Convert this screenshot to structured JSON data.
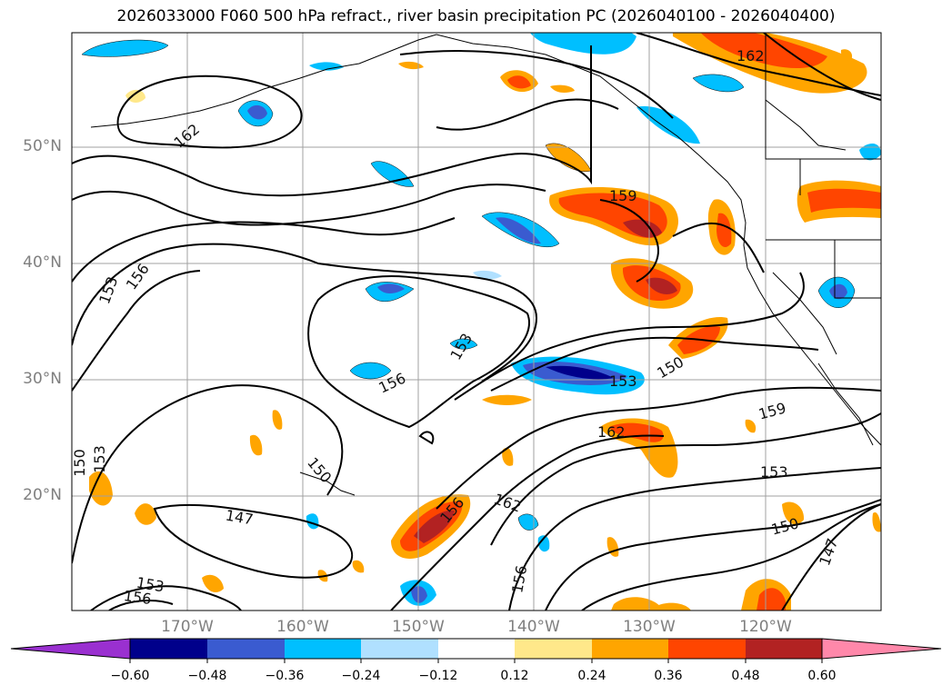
{
  "title": "2026033000 F060 500 hPa refract., river basin precipitation PC (2026040100 - 2026040400)",
  "lat_labels": [
    "50°N",
    "40°N",
    "30°N",
    "20°N"
  ],
  "lon_labels": [
    "170°W",
    "160°W",
    "150°W",
    "140°W",
    "130°W",
    "120°W"
  ],
  "contour_labels": [
    "162",
    "162",
    "159",
    "153",
    "156",
    "153",
    "156",
    "153",
    "150",
    "162",
    "159",
    "150",
    "153",
    "150",
    "153",
    "147",
    "156",
    "162",
    "150",
    "147",
    "156",
    "153",
    "156"
  ],
  "colorbar": {
    "ticks": [
      "−0.60",
      "−0.48",
      "−0.36",
      "−0.24",
      "−0.12",
      "0.12",
      "0.24",
      "0.36",
      "0.48",
      "0.60"
    ],
    "colors": [
      "#9a30d0",
      "#00008b",
      "#3a5bd0",
      "#00bfff",
      "#b0e0ff",
      "#ffffff",
      "#ffe88a",
      "#ffa500",
      "#ff4500",
      "#b22222",
      "#ff88aa"
    ]
  },
  "colors": {
    "contour": "#000000",
    "grid": "#a0a0a0",
    "coast": "#000000"
  }
}
